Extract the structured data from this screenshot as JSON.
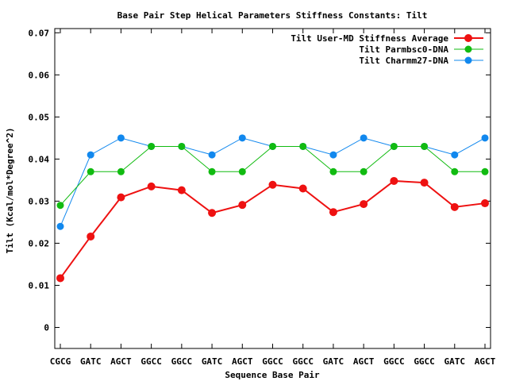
{
  "chart_data": {
    "type": "line",
    "title": "Base Pair Step Helical Parameters Stiffness Constants: Tilt",
    "xlabel": "Sequence Base Pair",
    "ylabel": "Tilt (Kcal/mol*Degree^2)",
    "ylim": [
      -0.005,
      0.071
    ],
    "yticks": [
      0,
      0.01,
      0.02,
      0.03,
      0.04,
      0.05,
      0.06,
      0.07
    ],
    "ytick_labels": [
      "0",
      "0.01",
      "0.02",
      "0.03",
      "0.04",
      "0.05",
      "0.06",
      "0.07"
    ],
    "categories": [
      "CGCG",
      "GATC",
      "AGCT",
      "GGCC",
      "GGCC",
      "GATC",
      "AGCT",
      "GGCC",
      "GGCC",
      "GATC",
      "AGCT",
      "GGCC",
      "GGCC",
      "GATC",
      "AGCT"
    ],
    "grid": false,
    "legend_position": "top-right",
    "series": [
      {
        "name": "Tilt User-MD Stiffness Average",
        "color": "#ee1111",
        "values": [
          0.0117,
          0.0216,
          0.0309,
          0.0335,
          0.0326,
          0.0272,
          0.0291,
          0.0339,
          0.033,
          0.0274,
          0.0293,
          0.0348,
          0.0344,
          0.0286,
          0.0295
        ]
      },
      {
        "name": "Tilt Parmbsc0-DNA",
        "color": "#11bb11",
        "values": [
          0.029,
          0.037,
          0.037,
          0.043,
          0.043,
          0.037,
          0.037,
          0.043,
          0.043,
          0.037,
          0.037,
          0.043,
          0.043,
          0.037,
          0.037
        ]
      },
      {
        "name": "Tilt Charmm27-DNA",
        "color": "#1188ee",
        "values": [
          0.024,
          0.041,
          0.045,
          0.043,
          0.043,
          0.041,
          0.045,
          0.043,
          0.043,
          0.041,
          0.045,
          0.043,
          0.043,
          0.041,
          0.045
        ]
      }
    ]
  }
}
